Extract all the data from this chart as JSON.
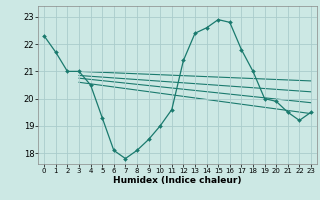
{
  "xlabel": "Humidex (Indice chaleur)",
  "bg_color": "#cce8e4",
  "grid_color": "#aacccc",
  "line_color": "#1a7a6e",
  "xlim": [
    -0.5,
    23.5
  ],
  "ylim": [
    17.6,
    23.4
  ],
  "xticks": [
    0,
    1,
    2,
    3,
    4,
    5,
    6,
    7,
    8,
    9,
    10,
    11,
    12,
    13,
    14,
    15,
    16,
    17,
    18,
    19,
    20,
    21,
    22,
    23
  ],
  "yticks": [
    18,
    19,
    20,
    21,
    22,
    23
  ],
  "curve1_x": [
    0,
    1,
    2,
    3,
    4,
    5,
    6,
    7,
    8,
    9,
    10,
    11,
    12,
    13,
    14,
    15,
    16,
    17,
    18,
    19,
    20,
    21,
    22,
    23
  ],
  "curve1_y": [
    22.3,
    21.7,
    21.0,
    21.0,
    20.5,
    19.3,
    18.1,
    17.8,
    18.1,
    18.5,
    19.0,
    19.6,
    21.4,
    22.4,
    22.6,
    22.9,
    22.8,
    21.8,
    21.0,
    20.0,
    19.9,
    19.5,
    19.2,
    19.5
  ],
  "line2_x": [
    3,
    23
  ],
  "line2_y": [
    21.0,
    20.65
  ],
  "line3_x": [
    3,
    23
  ],
  "line3_y": [
    20.85,
    20.25
  ],
  "line4_x": [
    3,
    23
  ],
  "line4_y": [
    20.75,
    19.85
  ],
  "line5_x": [
    3,
    23
  ],
  "line5_y": [
    20.6,
    19.45
  ]
}
